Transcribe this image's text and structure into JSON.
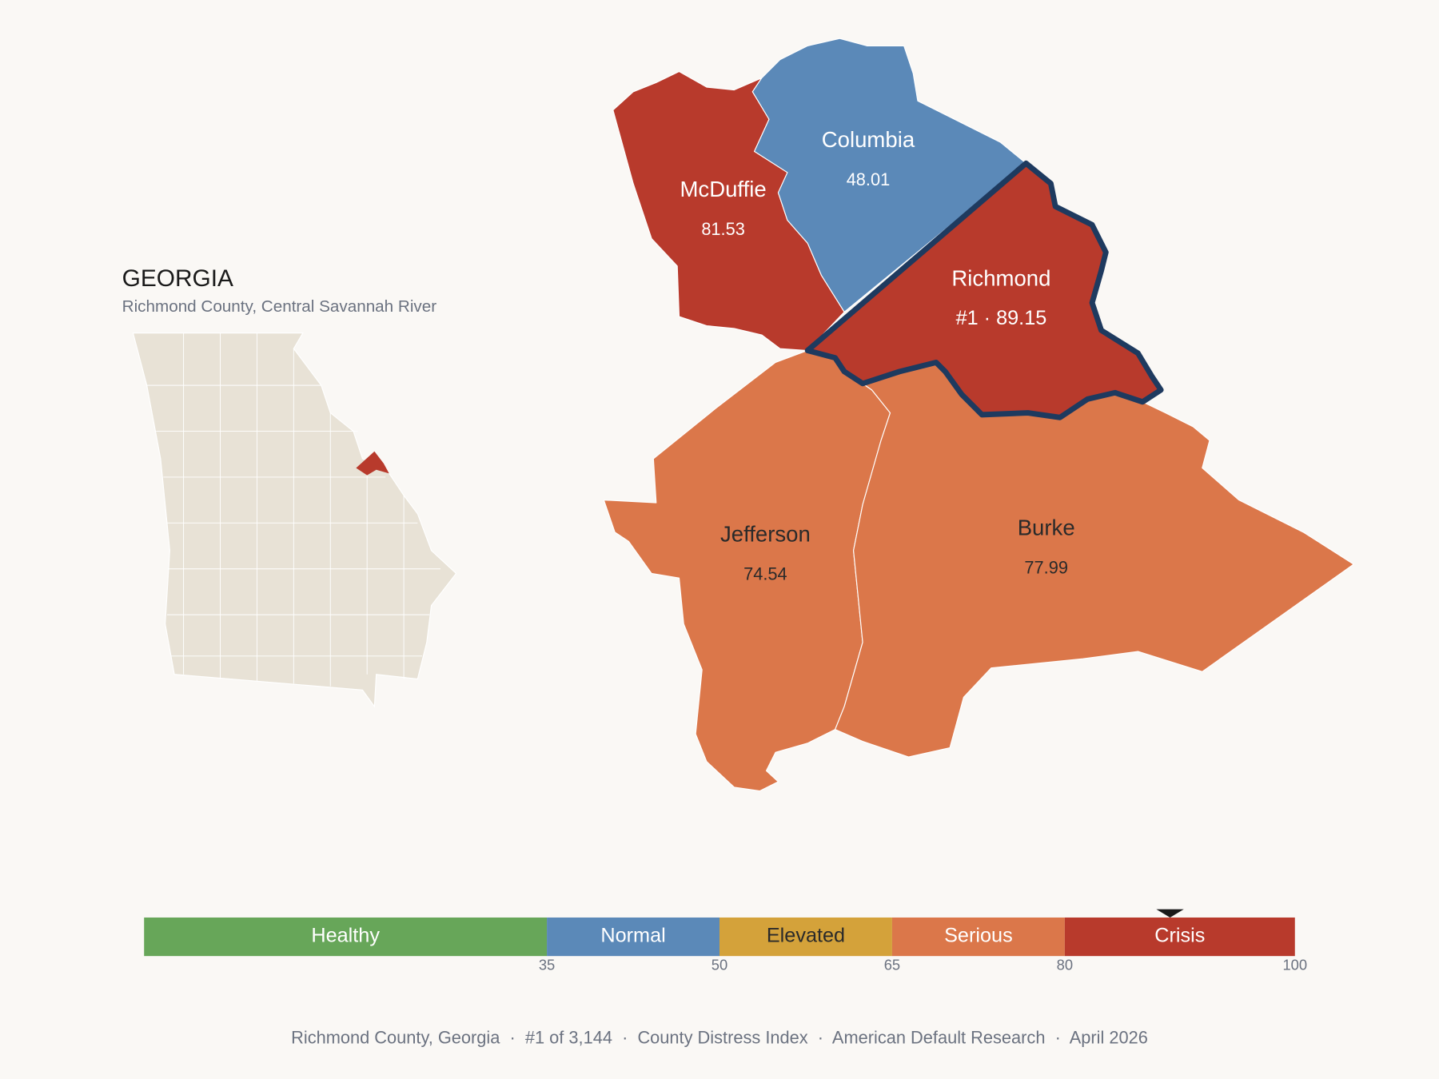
{
  "state": {
    "title": "GEORGIA",
    "subtitle": "Richmond County, Central Savannah River"
  },
  "counties": [
    {
      "name": "McDuffie",
      "value": 81.53
    },
    {
      "name": "Columbia",
      "value": 48.01
    },
    {
      "name": "Richmond",
      "value": 89.15,
      "value_label": "#1 · 89.15",
      "highlight": true
    },
    {
      "name": "Jefferson",
      "value": 74.54
    },
    {
      "name": "Burke",
      "value": 77.99
    }
  ],
  "scale": {
    "min": 0,
    "max": 100,
    "bands": [
      {
        "name": "Healthy",
        "from": 0,
        "to": 35,
        "color": "#67a659",
        "text_color": "#ffffff"
      },
      {
        "name": "Normal",
        "from": 35,
        "to": 50,
        "color": "#5b89b8",
        "text_color": "#ffffff"
      },
      {
        "name": "Elevated",
        "from": 50,
        "to": 65,
        "color": "#d4a23a",
        "text_color": "#2a2a2a"
      },
      {
        "name": "Serious",
        "from": 65,
        "to": 80,
        "color": "#db774a",
        "text_color": "#ffffff"
      },
      {
        "name": "Crisis",
        "from": 80,
        "to": 100,
        "color": "#b83a2c",
        "text_color": "#ffffff"
      }
    ],
    "ticks": [
      35,
      50,
      65,
      80,
      100
    ]
  },
  "footer": "Richmond County, Georgia  ·  #1 of 3,144  ·  County Distress Index  ·  American Default Research  ·  April 2026"
}
